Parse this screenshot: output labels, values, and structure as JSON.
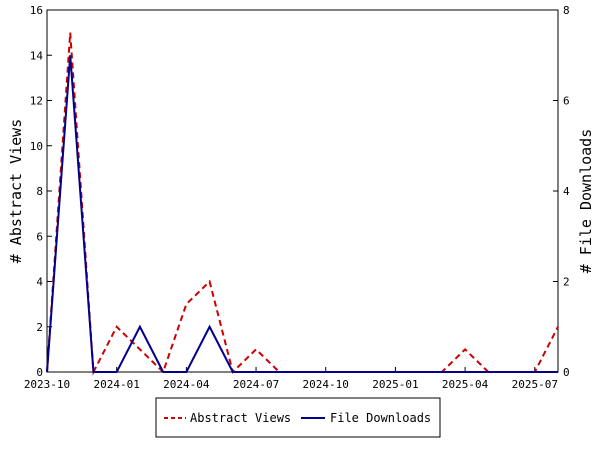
{
  "chart_data": {
    "type": "line",
    "title": "",
    "x": [
      "2023-10",
      "2023-11",
      "2023-12",
      "2024-01",
      "2024-02",
      "2024-03",
      "2024-04",
      "2024-05",
      "2024-06",
      "2024-07",
      "2024-08",
      "2024-09",
      "2024-10",
      "2024-11",
      "2024-12",
      "2025-01",
      "2025-02",
      "2025-03",
      "2025-04",
      "2025-05",
      "2025-06",
      "2025-07",
      "2025-08"
    ],
    "x_tick_labels": [
      "2023-10",
      "2024-01",
      "2024-04",
      "2024-07",
      "2024-10",
      "2025-01",
      "2025-04",
      "2025-07"
    ],
    "x_tick_values": [
      "2023-10",
      "2024-01",
      "2024-04",
      "2024-07",
      "2024-10",
      "2025-01",
      "2025-04",
      "2025-07"
    ],
    "xlim": [
      "2023-10",
      "2025-08"
    ],
    "ylabel_left": "# Abstract Views",
    "ylabel_right": "# File Downloads",
    "ylim_left": [
      0,
      16
    ],
    "ylim_right": [
      0,
      8
    ],
    "y_ticks_left": [
      "0",
      "2",
      "4",
      "6",
      "8",
      "10",
      "12",
      "14",
      "16"
    ],
    "y_ticks_right": [
      "0",
      "2",
      "4",
      "6",
      "8"
    ],
    "grid": false,
    "legend_position": "bottom",
    "series": [
      {
        "name": "Abstract Views",
        "axis": "left",
        "color": "#cc0000",
        "style": "dashed",
        "values": [
          0,
          15,
          0,
          2,
          1,
          0,
          3,
          4,
          0,
          1,
          0,
          0,
          0,
          0,
          0,
          0,
          0,
          0,
          1,
          0,
          0,
          0,
          2
        ]
      },
      {
        "name": "File Downloads",
        "axis": "right",
        "color": "#00008b",
        "style": "solid",
        "values": [
          0,
          7,
          0,
          0,
          1,
          0,
          0,
          1,
          0,
          0,
          0,
          0,
          0,
          0,
          0,
          0,
          0,
          0,
          0,
          0,
          0,
          0,
          0
        ]
      }
    ]
  }
}
